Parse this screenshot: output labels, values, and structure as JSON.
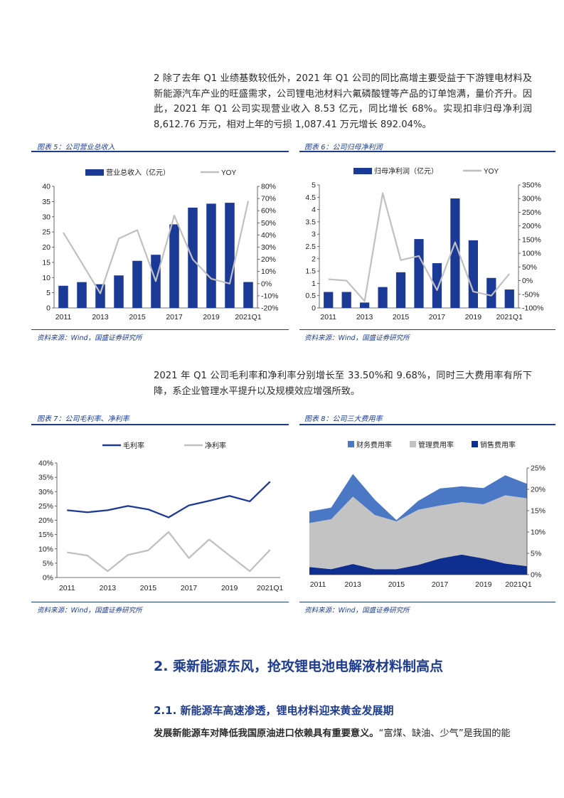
{
  "paragraph1": "2 除了去年 Q1 业绩基数较低外，2021 年 Q1 公司的同比高增主要受益于下游锂电材料及新能源汽车产业的旺盛需求，公司锂电池材料六氟磷酸锂等产品的订单饱满，量价齐升。因此，2021 年 Q1 公司实现营业收入 8.53 亿元，同比增长 68%。实现扣非归母净利润 8,612.76 万元，相对上年的亏损 1,087.41 万元增长 892.04%。",
  "paragraph2": "2021 年 Q1 公司毛利率和净利率分别增长至 33.50%和 9.68%，同时三大费用率有所下降，系企业管理水平提升以及规模效应增强所致。",
  "source_text": "资料来源：Wind，国盛证券研究所",
  "figures": {
    "fig5": "图表 5：公司营业总收入",
    "fig6": "图表 6：公司归母净利润",
    "fig7": "图表 7：公司毛利率、净利率",
    "fig8": "图表 8：公司三大费用率"
  },
  "heading2": "2. 乘新能源东风，抢攻锂电池电解液材料制高点",
  "heading3": "2.1. 新能源车高速渗透，锂电材料迎来黄金发展期",
  "last_bold": "发展新能源车对降低我国原油进口依赖具有重要意义。",
  "last_rest": "“富煤、缺油、少气”是我国的能",
  "colors": {
    "bar": "#1a3a96",
    "gray_line": "#c0c0c0",
    "title_blue": "#1d3c8f"
  },
  "chart_data": [
    {
      "type": "bar+line",
      "categories": [
        "2011",
        "2012",
        "2013",
        "2014",
        "2015",
        "2016",
        "2017",
        "2018",
        "2019",
        "2020",
        "2021Q1"
      ],
      "x_tick_labels": [
        "2011",
        "2013",
        "2015",
        "2017",
        "2019",
        "2021Q1"
      ],
      "series": [
        {
          "name": "营业总收入（亿元）",
          "kind": "bar",
          "axis": "left",
          "values": [
            7.3,
            8.5,
            7.8,
            10.7,
            15.5,
            17.5,
            27.5,
            33,
            34.3,
            34.6,
            8.53
          ]
        },
        {
          "name": "YOY",
          "kind": "line",
          "axis": "right",
          "values": [
            42,
            17,
            -8,
            37,
            44,
            2,
            56,
            20,
            4,
            0,
            68
          ]
        }
      ],
      "y_left": {
        "min": 0,
        "max": 40,
        "ticks": [
          "0",
          "5",
          "10",
          "15",
          "20",
          "25",
          "30",
          "35",
          "40"
        ]
      },
      "y_right": {
        "min": -20,
        "max": 80,
        "ticks": [
          "-20%",
          "-10%",
          "0%",
          "10%",
          "20%",
          "30%",
          "40%",
          "50%",
          "60%",
          "70%",
          "80%"
        ]
      },
      "legend": "top"
    },
    {
      "type": "bar+line",
      "categories": [
        "2011",
        "2012",
        "2013",
        "2014",
        "2015",
        "2016",
        "2017",
        "2018",
        "2019",
        "2020",
        "2021Q1"
      ],
      "x_tick_labels": [
        "2011",
        "2013",
        "2015",
        "2017",
        "2019",
        "2021Q1"
      ],
      "series": [
        {
          "name": "归母净利润（亿元）",
          "kind": "bar",
          "axis": "left",
          "values": [
            0.65,
            0.65,
            0.22,
            0.85,
            1.45,
            2.8,
            1.82,
            4.45,
            2.75,
            1.22,
            0.75
          ]
        },
        {
          "name": "YOY",
          "kind": "line",
          "axis": "right",
          "values": [
            5,
            0,
            -75,
            320,
            75,
            90,
            -35,
            140,
            -40,
            -55,
            25
          ]
        }
      ],
      "y_left": {
        "min": 0,
        "max": 5,
        "ticks": [
          "0",
          "0.5",
          "1",
          "1.5",
          "2",
          "2.5",
          "3",
          "3.5",
          "4",
          "4.5",
          "5"
        ]
      },
      "y_right": {
        "min": -100,
        "max": 350,
        "ticks": [
          "-100%",
          "-50%",
          "0%",
          "50%",
          "100%",
          "150%",
          "200%",
          "250%",
          "300%",
          "350%"
        ]
      },
      "legend": "top"
    },
    {
      "type": "line",
      "categories": [
        "2011",
        "2012",
        "2013",
        "2014",
        "2015",
        "2016",
        "2017",
        "2018",
        "2019",
        "2020",
        "2021Q1"
      ],
      "x_tick_labels": [
        "2011",
        "2013",
        "2015",
        "2017",
        "2019",
        "2021Q1"
      ],
      "series": [
        {
          "name": "毛利率",
          "values": [
            23.5,
            22.8,
            23.5,
            25,
            23.8,
            21,
            25.2,
            26.8,
            28.5,
            26.6,
            33.5
          ]
        },
        {
          "name": "净利率",
          "values": [
            8.8,
            7.7,
            2.2,
            7.9,
            9.5,
            15.9,
            6.8,
            13.3,
            7.7,
            2.2,
            9.68
          ]
        }
      ],
      "y_left": {
        "min": 0,
        "max": 40,
        "ticks": [
          "0%",
          "5%",
          "10%",
          "15%",
          "20%",
          "25%",
          "30%",
          "35%",
          "40%"
        ]
      },
      "legend": "top"
    },
    {
      "type": "area",
      "stacked": true,
      "categories": [
        "2011",
        "2012",
        "2013",
        "2014",
        "2015",
        "2016",
        "2017",
        "2018",
        "2019",
        "2020",
        "2021Q1"
      ],
      "x_tick_labels": [
        "2011",
        "2013",
        "2015",
        "2017",
        "2019",
        "2021Q1"
      ],
      "series": [
        {
          "name": "销售费用率",
          "values": [
            1.8,
            1.3,
            2.5,
            1.3,
            1.3,
            2.3,
            3.8,
            4.7,
            3.8,
            2.6,
            2
          ]
        },
        {
          "name": "管理费用率",
          "values": [
            10.3,
            11.7,
            15.8,
            12.7,
            11.2,
            12.9,
            12.4,
            12.3,
            12.7,
            16,
            15.9
          ]
        },
        {
          "name": "财务费用率",
          "values": [
            2.7,
            2.7,
            5.3,
            3.6,
            0.3,
            2.1,
            4,
            3.7,
            3.8,
            4.7,
            3.4
          ]
        }
      ],
      "legend_order": [
        "财务费用率",
        "管理费用率",
        "销售费用率"
      ],
      "y_right": {
        "min": 0,
        "max": 25,
        "ticks": [
          "0%",
          "5%",
          "10%",
          "15%",
          "20%",
          "25%"
        ]
      },
      "legend": "top"
    }
  ]
}
